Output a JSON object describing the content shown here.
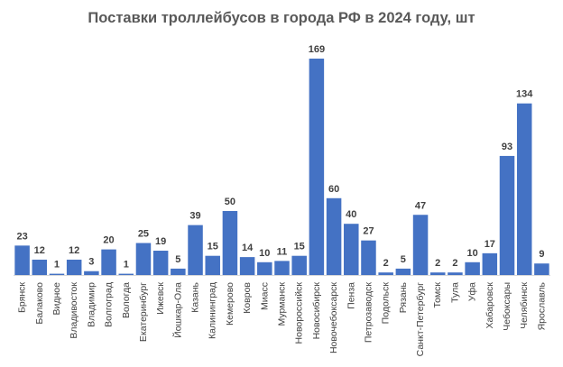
{
  "chart_data": {
    "type": "bar",
    "title": "Поставки троллейбусов в города РФ в 2024 году, шт",
    "xlabel": "",
    "ylabel": "",
    "categories": [
      "Брянск",
      "Балаково",
      "Видное",
      "Владивосток",
      "Владимир",
      "Волгоград",
      "Вологда",
      "Екатеринбург",
      "Ижевск",
      "Йошкар-Ола",
      "Казань",
      "Калининград",
      "Кемерово",
      "Ковров",
      "Миасс",
      "Мурманск",
      "Новороссийск",
      "Новосибирск",
      "Новочебоксарск",
      "Пенза",
      "Петрозаводск",
      "Подольск",
      "Рязань",
      "Санкт-Петербург",
      "Томск",
      "Тула",
      "Уфа",
      "Хабаровск",
      "Чебоксары",
      "Челябинск",
      "Ярославль"
    ],
    "values": [
      23,
      12,
      1,
      12,
      3,
      20,
      1,
      25,
      19,
      5,
      39,
      15,
      50,
      14,
      10,
      11,
      15,
      169,
      60,
      40,
      27,
      2,
      5,
      47,
      2,
      2,
      10,
      17,
      93,
      134,
      9
    ],
    "ylim": [
      0,
      169
    ],
    "grid": false,
    "legend": "none",
    "bar_color": "#4472C4"
  }
}
